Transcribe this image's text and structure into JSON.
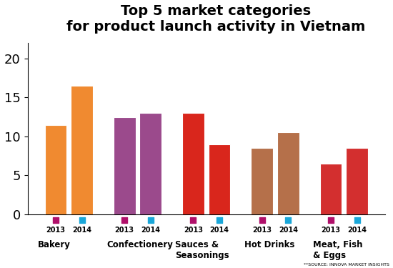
{
  "chart_data": {
    "type": "bar",
    "title": "Top 5 market categories\nfor product launch activity in Vietnam",
    "categories": [
      "Bakery",
      "Confectionery",
      "Sauces &\nSeasonings",
      "Hot Drinks",
      "Meat, Fish\n& Eggs"
    ],
    "colors": [
      "#f08a30",
      "#9b4a8c",
      "#d9261c",
      "#b5704a",
      "#d32f2f"
    ],
    "series": [
      {
        "name": "2013",
        "color": "#b0106a",
        "values": [
          11.5,
          12.5,
          13,
          8.5,
          6.5
        ]
      },
      {
        "name": "2014",
        "color": "#1aa7d9",
        "values": [
          16.5,
          13,
          9,
          10.5,
          8.5
        ]
      }
    ],
    "ylim": [
      0,
      22
    ],
    "yticks": [
      0,
      5,
      10,
      15,
      20
    ],
    "grid": false,
    "annotations": [
      "**SOURCE: INNOVA MARKET INSIGHTS"
    ]
  }
}
